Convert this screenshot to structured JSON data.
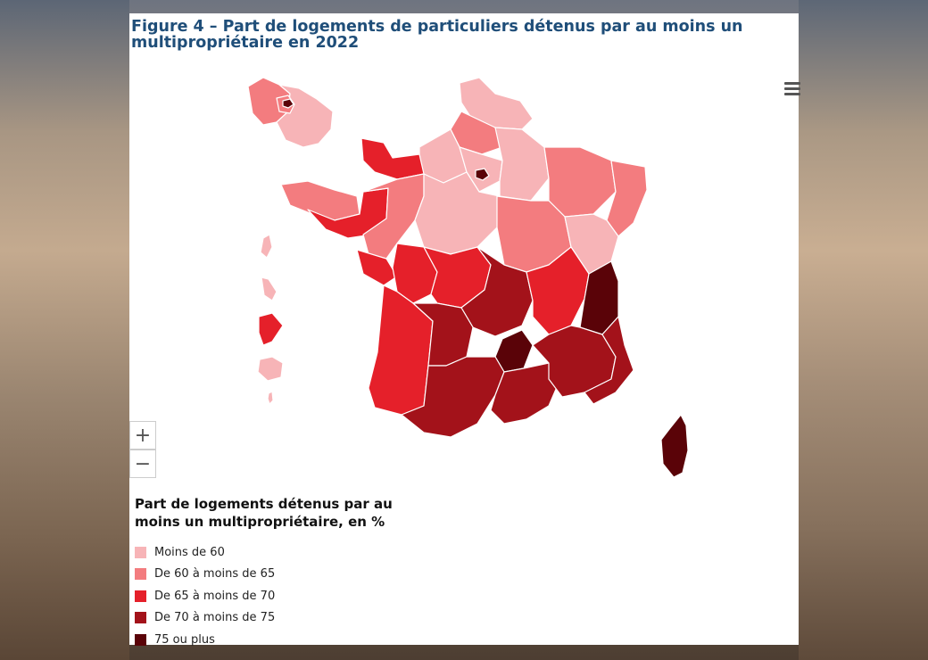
{
  "figure": {
    "title": "Figure 4 – Part de logements de particuliers détenus par au moins un multipropriétaire en 2022"
  },
  "controls": {
    "zoom_in": "+",
    "zoom_out": "−",
    "menu_icon": "hamburger-icon"
  },
  "legend": {
    "title": "Part de logements détenus par au moins un multipropriétaire, en %",
    "items": [
      {
        "label": "Moins de 60",
        "color": "#f7b4b7"
      },
      {
        "label": "De 60 à moins de 65",
        "color": "#f37c7f"
      },
      {
        "label": "De 65 à moins de 70",
        "color": "#e5202a"
      },
      {
        "label": "De 70 à moins de 75",
        "color": "#a3121a"
      },
      {
        "label": "75 ou plus",
        "color": "#5a0308"
      }
    ]
  },
  "map_data": {
    "regions": {
      "nord": 0,
      "picardie": 1,
      "normandie_est": 0,
      "normandie_ouest": 2,
      "ile_de_france": 0,
      "paris": 4,
      "champagne": 0,
      "lorraine": 1,
      "alsace": 1,
      "bretagne_nord": 1,
      "bretagne_sud": 2,
      "pays_de_loire": 1,
      "centre": 0,
      "bourgogne": 1,
      "franche_comte": 0,
      "poitou": 2,
      "limousin": 2,
      "auvergne": 3,
      "cantal": 4,
      "rhone_alpes": 2,
      "savoie": 4,
      "aquitaine": 2,
      "midi_pyrenees": 3,
      "languedoc": 3,
      "provence": 3,
      "alpes_maritimes": 3,
      "corse": 4,
      "guadeloupe": 0,
      "martinique": 0,
      "guyane": 2,
      "reunion": 0,
      "mayotte": 0
    }
  }
}
